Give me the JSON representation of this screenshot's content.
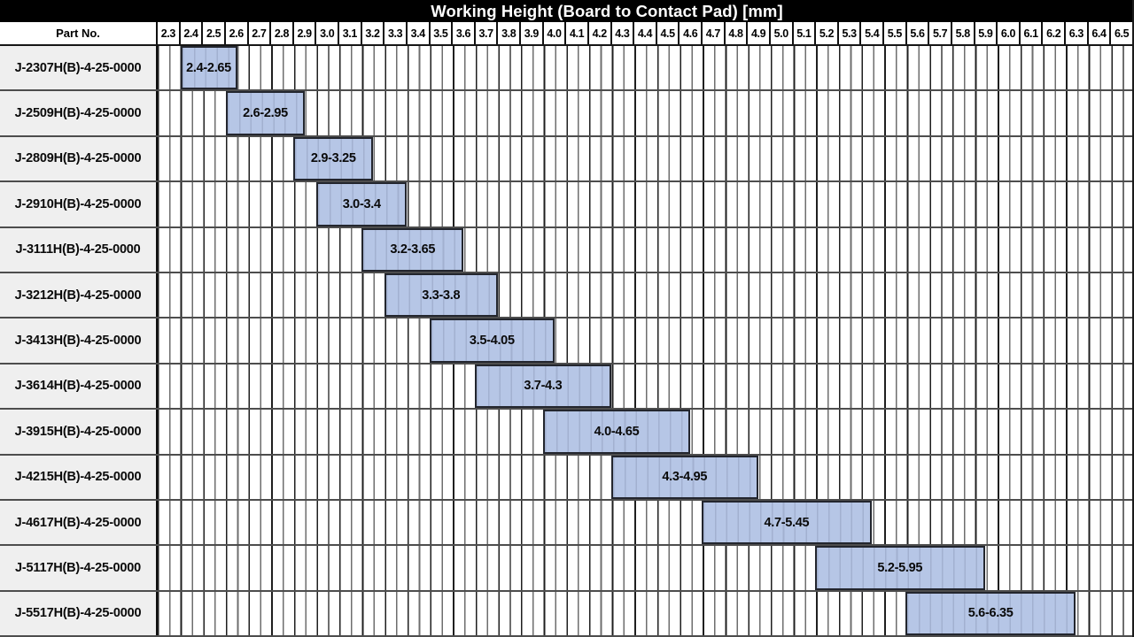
{
  "title": "Working Height (Board to Contact Pad) [mm]",
  "header": {
    "part_no_label": "Part No."
  },
  "chart_data": {
    "type": "bar",
    "subtype": "horizontal-range",
    "title": "Working Height (Board to Contact Pad) [mm]",
    "axis": {
      "domain_min": 2.3,
      "domain_max": 6.6,
      "major_tick": 0.1,
      "minor_tick": 0.05,
      "tick_labels": [
        "2.3",
        "2.4",
        "2.5",
        "2.6",
        "2.7",
        "2.8",
        "2.9",
        "3.0",
        "3.1",
        "3.2",
        "3.3",
        "3.4",
        "3.5",
        "3.6",
        "3.7",
        "3.8",
        "3.9",
        "4.0",
        "4.1",
        "4.2",
        "4.3",
        "4.4",
        "4.5",
        "4.6",
        "4.7",
        "4.8",
        "4.9",
        "5.0",
        "5.1",
        "5.2",
        "5.3",
        "5.4",
        "5.5",
        "5.6",
        "5.7",
        "5.8",
        "5.9",
        "6.0",
        "6.1",
        "6.2",
        "6.3",
        "6.4",
        "6.5"
      ],
      "grid": true
    },
    "rows": [
      {
        "part_no": "J-2307H(B)-4-25-0000",
        "start": 2.4,
        "end": 2.65,
        "label": "2.4-2.65"
      },
      {
        "part_no": "J-2509H(B)-4-25-0000",
        "start": 2.6,
        "end": 2.95,
        "label": "2.6-2.95"
      },
      {
        "part_no": "J-2809H(B)-4-25-0000",
        "start": 2.9,
        "end": 3.25,
        "label": "2.9-3.25"
      },
      {
        "part_no": "J-2910H(B)-4-25-0000",
        "start": 3.0,
        "end": 3.4,
        "label": "3.0-3.4"
      },
      {
        "part_no": "J-3111H(B)-4-25-0000",
        "start": 3.2,
        "end": 3.65,
        "label": "3.2-3.65"
      },
      {
        "part_no": "J-3212H(B)-4-25-0000",
        "start": 3.3,
        "end": 3.8,
        "label": "3.3-3.8"
      },
      {
        "part_no": "J-3413H(B)-4-25-0000",
        "start": 3.5,
        "end": 4.05,
        "label": "3.5-4.05"
      },
      {
        "part_no": "J-3614H(B)-4-25-0000",
        "start": 3.7,
        "end": 4.3,
        "label": "3.7-4.3"
      },
      {
        "part_no": "J-3915H(B)-4-25-0000",
        "start": 4.0,
        "end": 4.65,
        "label": "4.0-4.65"
      },
      {
        "part_no": "J-4215H(B)-4-25-0000",
        "start": 4.3,
        "end": 4.95,
        "label": "4.3-4.95"
      },
      {
        "part_no": "J-4617H(B)-4-25-0000",
        "start": 4.7,
        "end": 5.45,
        "label": "4.7-5.45"
      },
      {
        "part_no": "J-5117H(B)-4-25-0000",
        "start": 5.2,
        "end": 5.95,
        "label": "5.2-5.95"
      },
      {
        "part_no": "J-5517H(B)-4-25-0000",
        "start": 5.6,
        "end": 6.35,
        "label": "5.6-6.35"
      }
    ],
    "colors": {
      "bar_fill": "#b6c6e6",
      "bar_border": "#23262e",
      "title_bg": "#000000",
      "title_text": "#ffffff",
      "row_label_bg": "#efefef",
      "grid_major": "#1f1f1f",
      "grid_minor": "#6e6e6e",
      "row_separator": "#4d4d4d"
    }
  }
}
